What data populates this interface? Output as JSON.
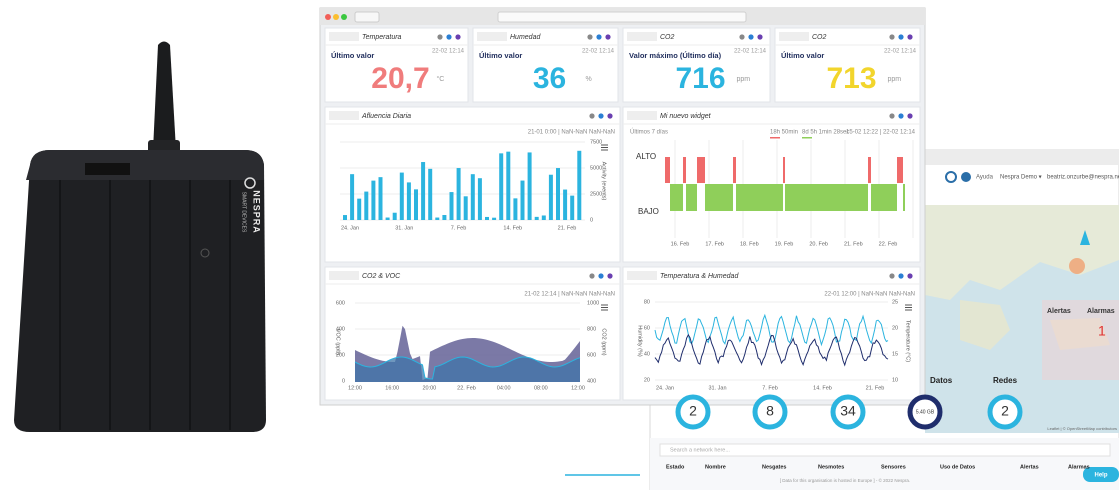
{
  "device": {
    "brand": "NESPRA",
    "tagline": "SMART DEVICES"
  },
  "kpis": [
    {
      "title": "Temperatura",
      "time": "22-02 12:14",
      "label": "Último valor",
      "value": "20,7",
      "unit": "°C",
      "color": "#f07c7c"
    },
    {
      "title": "Humedad",
      "time": "22-02 12:14",
      "label": "Último valor",
      "value": "36",
      "unit": "%",
      "color": "#2bb4df"
    },
    {
      "title": "CO2",
      "time": "22-02 12:14",
      "label": "Valor máximo (Último día)",
      "value": "716",
      "unit": "ppm",
      "color": "#2bb4df"
    },
    {
      "title": "CO2",
      "time": "22-02 12:14",
      "label": "Último valor",
      "value": "713",
      "unit": "ppm",
      "color": "#f2d52c"
    }
  ],
  "charts": [
    {
      "title": "Afluencia Diaria",
      "range": "21-01 0:00 | NaN-NaN NaN-NaN",
      "x_labels": [
        "24. Jan",
        "31. Jan",
        "7. Feb",
        "14. Feb",
        "21. Feb"
      ],
      "y_labels": [
        "7500",
        "5000",
        "2500",
        "0"
      ],
      "y_title": "Activity (events)"
    },
    {
      "title": "Mi nuevo widget",
      "period": "Últimos 7 días",
      "high_time": "18h 50min",
      "low_time": "8d 5h 1min 28sec",
      "range": "15-02 12:22 | 22-02 12:14",
      "high": "ALTO",
      "low": "BAJO",
      "x_labels": [
        "16. Feb",
        "17. Feb",
        "18. Feb",
        "19. Feb",
        "20. Feb",
        "21. Feb",
        "22. Feb"
      ]
    },
    {
      "title": "CO2 & VOC",
      "range": "21-02 12:14 | NaN-NaN NaN-NaN",
      "y_labels": [
        "600",
        "400",
        "200",
        "0"
      ],
      "y_title": "VOC (ppb)",
      "y2_labels": [
        "1000",
        "800",
        "600",
        "400"
      ],
      "y2_title": "CO2 (ppm)",
      "x_labels": [
        "12:00",
        "16:00",
        "20:00",
        "22. Feb",
        "04:00",
        "08:00",
        "12:00"
      ]
    },
    {
      "title": "Temperatura & Humedad",
      "range": "22-01 12:00 | NaN-NaN NaN-NaN",
      "y_labels": [
        "80",
        "60",
        "40",
        "20"
      ],
      "y_title": "Humidity (%)",
      "y2_labels": [
        "25",
        "20",
        "15",
        "10"
      ],
      "y2_title": "Temperature (°C)",
      "x_labels": [
        "24. Jan",
        "31. Jan",
        "7. Feb",
        "14. Feb",
        "21. Feb"
      ]
    }
  ],
  "back": {
    "help_top": "Ayuda",
    "org": "Nespra Demo ▾",
    "user": "beatriz.onzurbe@nespra.net",
    "alerts": "Alertas",
    "alarms": "Alarmas",
    "alarm_count": "1",
    "data": "Datos",
    "networks": "Redes",
    "circles": [
      "2",
      "8",
      "34",
      "5.40 GB",
      "2"
    ],
    "search": "Search a network here...",
    "headers": [
      "Estado",
      "Nombre",
      "Nesgates",
      "Nesmotes",
      "Sensores",
      "Uso de Datos",
      "Alertas",
      "Alarmas"
    ],
    "footer": "[ Data for this organisation is hosted in Europe ] - © 2022 Nespra.",
    "help": "Help",
    "attribution": "Leaflet | © OpenStreetMap contributors"
  }
}
